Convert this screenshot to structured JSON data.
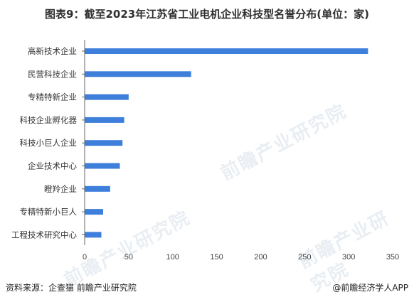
{
  "title": "图表9：截至2023年江苏省工业电机企业科技型名誉分布(单位：家)",
  "footer": {
    "source": "资料来源：企查猫 前瞻产业研究院",
    "brand": "@前瞻经济学人APP"
  },
  "watermark": "前瞻产业研究院",
  "chart_data": {
    "type": "bar",
    "orientation": "horizontal",
    "categories": [
      "高新技术企业",
      "民营科技企业",
      "专精特新企业",
      "科技企业孵化器",
      "科技小巨人企业",
      "企业技术中心",
      "瞪羚企业",
      "专精特新小巨人",
      "工程技术研究中心"
    ],
    "values": [
      322,
      121,
      50,
      45,
      43,
      40,
      29,
      21,
      19
    ],
    "xlim": [
      0,
      350
    ],
    "xticks": [
      0,
      50,
      100,
      150,
      200,
      250,
      300,
      350
    ],
    "grid": false,
    "bar_color": "#3f7fdc"
  }
}
